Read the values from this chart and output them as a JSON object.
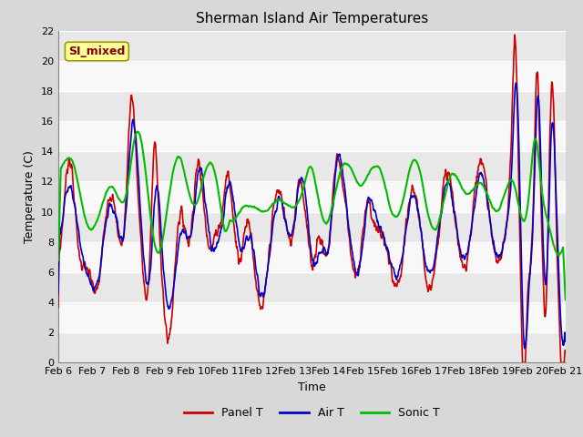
{
  "title": "Sherman Island Air Temperatures",
  "xlabel": "Time",
  "ylabel": "Temperature (C)",
  "annotation": "SI_mixed",
  "ylim": [
    0,
    22
  ],
  "date_labels": [
    "Feb 6",
    "Feb 7",
    "Feb 8",
    "Feb 9",
    "Feb 10",
    "Feb 11",
    "Feb 12",
    "Feb 13",
    "Feb 14",
    "Feb 15",
    "Feb 16",
    "Feb 17",
    "Feb 18",
    "Feb 19",
    "Feb 20",
    "Feb 21"
  ],
  "legend_labels": [
    "Panel T",
    "Air T",
    "Sonic T"
  ],
  "colors": {
    "panel": "#cc0000",
    "air": "#0000cc",
    "sonic": "#00bb00",
    "plot_bg_light": "#f0f0f0",
    "plot_bg_dark": "#dcdcdc",
    "annotation_bg": "#ffff99",
    "annotation_border": "#999900",
    "annotation_text": "#880000"
  },
  "title_fontsize": 11,
  "label_fontsize": 9,
  "tick_fontsize": 8,
  "linewidth": 1.2
}
